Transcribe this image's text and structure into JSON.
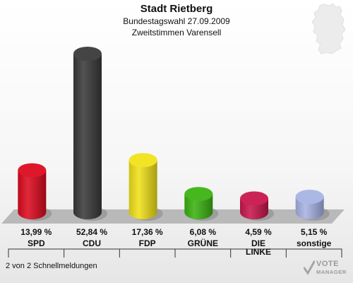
{
  "header": {
    "title": "Stadt Rietberg",
    "subtitle1": "Bundestagswahl 27.09.2009",
    "subtitle2": "Zweitstimmen Varensell"
  },
  "footer": {
    "text": "2 von 2 Schnellmeldungen"
  },
  "logo": {
    "line1": "VOTE",
    "line2": "MANAGER"
  },
  "chart_data": {
    "type": "bar",
    "categories": [
      "SPD",
      "CDU",
      "FDP",
      "GRÜNE",
      "DIE LINKE",
      "sonstige"
    ],
    "values": [
      13.99,
      52.84,
      17.36,
      6.08,
      4.59,
      5.15
    ],
    "value_labels": [
      "13,99 %",
      "52,84 %",
      "17,36 %",
      "6,08 %",
      "4,59 %",
      "5,15 %"
    ],
    "colors": [
      "#dd0b20",
      "#3a3a3a",
      "#f1e219",
      "#3cb312",
      "#c8174c",
      "#a7b3e4"
    ],
    "ylim": [
      0,
      52.84
    ],
    "grid": false,
    "legend": "none"
  }
}
